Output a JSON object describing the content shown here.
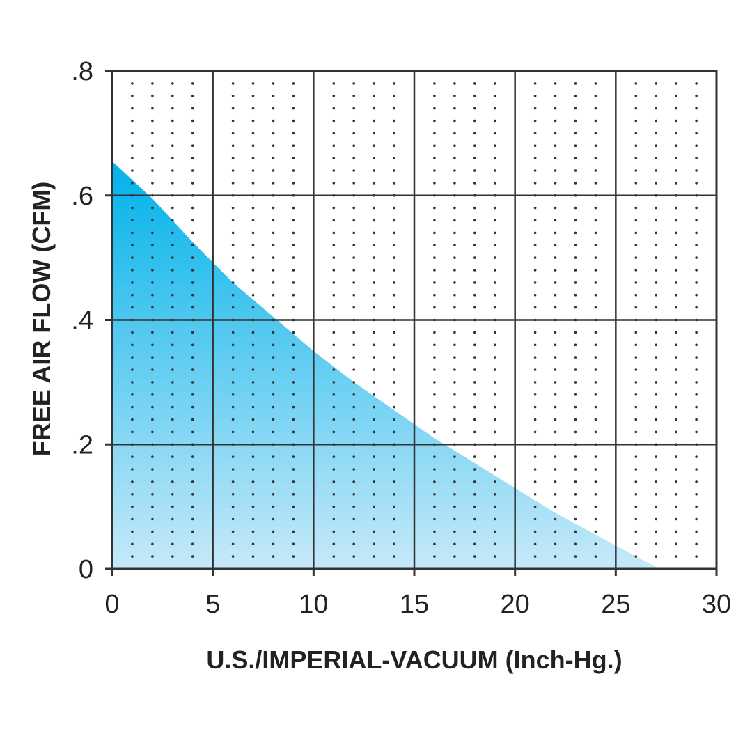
{
  "chart_data": {
    "type": "area",
    "title": "",
    "xlabel": "U.S./IMPERIAL-VACUUM (Inch-Hg.)",
    "ylabel": "FREE AIR FLOW (CFM)",
    "xlim": [
      0,
      30
    ],
    "ylim": [
      0,
      0.8
    ],
    "x_ticks": [
      {
        "value": 0,
        "label": "0"
      },
      {
        "value": 5,
        "label": "5"
      },
      {
        "value": 10,
        "label": "10"
      },
      {
        "value": 15,
        "label": "15"
      },
      {
        "value": 20,
        "label": "20"
      },
      {
        "value": 25,
        "label": "25"
      },
      {
        "value": 30,
        "label": "30"
      }
    ],
    "y_ticks": [
      {
        "value": 0,
        "label": "0"
      },
      {
        "value": 0.2,
        "label": ".2"
      },
      {
        "value": 0.4,
        "label": ".4"
      },
      {
        "value": 0.6,
        "label": ".6"
      },
      {
        "value": 0.8,
        "label": ".8"
      }
    ],
    "grid": true,
    "minor_grid": "dotted",
    "legend": "none",
    "series": [
      {
        "x": [
          0,
          2,
          4,
          6,
          8,
          10,
          12,
          14,
          16,
          18,
          20,
          22,
          24,
          26,
          27.2
        ],
        "values": [
          0.655,
          0.595,
          0.525,
          0.46,
          0.405,
          0.35,
          0.3,
          0.255,
          0.21,
          0.17,
          0.13,
          0.09,
          0.055,
          0.02,
          0
        ],
        "fill_top_color": "#00b2ea",
        "fill_bottom_color": "#c6e9f9"
      }
    ],
    "colors": {
      "grid": "#333333",
      "dots": "#333333",
      "text": "#222222"
    }
  }
}
